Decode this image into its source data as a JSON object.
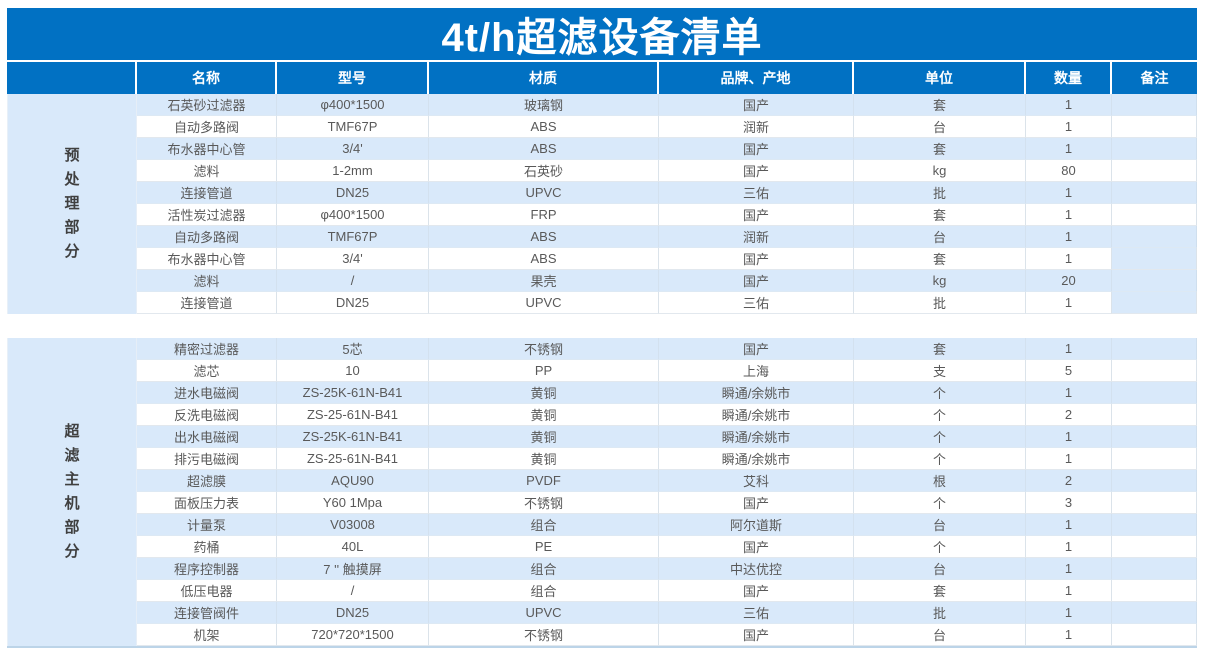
{
  "title": "4t/h超滤设备清单",
  "colors": {
    "header_blue": "#0171c3",
    "stripe_blue": "#d9e9fa",
    "header_text": "#ffffff",
    "cell_text": "#595959"
  },
  "columns": [
    "名称",
    "型号",
    "材质",
    "品牌、产地",
    "单位",
    "数量",
    "备注"
  ],
  "sections": [
    {
      "label": "预处理部分",
      "rows": [
        {
          "name": "石英砂过滤器",
          "model": "φ400*1500",
          "material": "玻璃钢",
          "brand": "国产",
          "unit": "套",
          "qty": "1",
          "remark": ""
        },
        {
          "name": "自动多路阀",
          "model": "TMF67P",
          "material": "ABS",
          "brand": "润新",
          "unit": "台",
          "qty": "1",
          "remark": ""
        },
        {
          "name": "布水器中心管",
          "model": "3/4'",
          "material": "ABS",
          "brand": "国产",
          "unit": "套",
          "qty": "1",
          "remark": ""
        },
        {
          "name": "滤料",
          "model": "1-2mm",
          "material": "石英砂",
          "brand": "国产",
          "unit": "kg",
          "qty": "80",
          "remark": ""
        },
        {
          "name": "连接管道",
          "model": "DN25",
          "material": "UPVC",
          "brand": "三佑",
          "unit": "批",
          "qty": "1",
          "remark": ""
        },
        {
          "name": "活性炭过滤器",
          "model": "φ400*1500",
          "material": "FRP",
          "brand": "国产",
          "unit": "套",
          "qty": "1",
          "remark": ""
        },
        {
          "name": "自动多路阀",
          "model": "TMF67P",
          "material": "ABS",
          "brand": "润新",
          "unit": "台",
          "qty": "1",
          "remark": ""
        },
        {
          "name": "布水器中心管",
          "model": "3/4'",
          "material": "ABS",
          "brand": "国产",
          "unit": "套",
          "qty": "1",
          "remark": "",
          "remark_shaded": true
        },
        {
          "name": "滤料",
          "model": "/",
          "material": "果壳",
          "brand": "国产",
          "unit": "kg",
          "qty": "20",
          "remark": ""
        },
        {
          "name": "连接管道",
          "model": "DN25",
          "material": "UPVC",
          "brand": "三佑",
          "unit": "批",
          "qty": "1",
          "remark": "",
          "remark_shaded": true
        }
      ]
    },
    {
      "label": "超滤主机部分",
      "rows": [
        {
          "name": "精密过滤器",
          "model": "5芯",
          "material": "不锈钢",
          "brand": "国产",
          "unit": "套",
          "qty": "1",
          "remark": ""
        },
        {
          "name": "滤芯",
          "model": "10",
          "material": "PP",
          "brand": "上海",
          "unit": "支",
          "qty": "5",
          "remark": ""
        },
        {
          "name": "进水电磁阀",
          "model": "ZS-25K-61N-B41",
          "material": "黄铜",
          "brand": "瞬通/余姚市",
          "unit": "个",
          "qty": "1",
          "remark": ""
        },
        {
          "name": "反洗电磁阀",
          "model": "ZS-25-61N-B41",
          "material": "黄铜",
          "brand": "瞬通/余姚市",
          "unit": "个",
          "qty": "2",
          "remark": ""
        },
        {
          "name": "出水电磁阀",
          "model": "ZS-25K-61N-B41",
          "material": "黄铜",
          "brand": "瞬通/余姚市",
          "unit": "个",
          "qty": "1",
          "remark": ""
        },
        {
          "name": "排污电磁阀",
          "model": "ZS-25-61N-B41",
          "material": "黄铜",
          "brand": "瞬通/余姚市",
          "unit": "个",
          "qty": "1",
          "remark": ""
        },
        {
          "name": "超滤膜",
          "model": "AQU90",
          "material": "PVDF",
          "brand": "艾科",
          "unit": "根",
          "qty": "2",
          "remark": ""
        },
        {
          "name": "面板压力表",
          "model": "Y60 1Mpa",
          "material": "不锈钢",
          "brand": "国产",
          "unit": "个",
          "qty": "3",
          "remark": ""
        },
        {
          "name": "计量泵",
          "model": "V03008",
          "material": "组合",
          "brand": "阿尔道斯",
          "unit": "台",
          "qty": "1",
          "remark": ""
        },
        {
          "name": "药桶",
          "model": "40L",
          "material": "PE",
          "brand": "国产",
          "unit": "个",
          "qty": "1",
          "remark": ""
        },
        {
          "name": "程序控制器",
          "model": "7 ''  触摸屏",
          "material": "组合",
          "brand": "中达优控",
          "unit": "台",
          "qty": "1",
          "remark": ""
        },
        {
          "name": "低压电器",
          "model": "/",
          "material": "组合",
          "brand": "国产",
          "unit": "套",
          "qty": "1",
          "remark": ""
        },
        {
          "name": "连接管阀件",
          "model": "DN25",
          "material": "UPVC",
          "brand": "三佑",
          "unit": "批",
          "qty": "1",
          "remark": ""
        },
        {
          "name": "机架",
          "model": "720*720*1500",
          "material": "不锈钢",
          "brand": "国产",
          "unit": "台",
          "qty": "1",
          "remark": ""
        }
      ]
    }
  ]
}
